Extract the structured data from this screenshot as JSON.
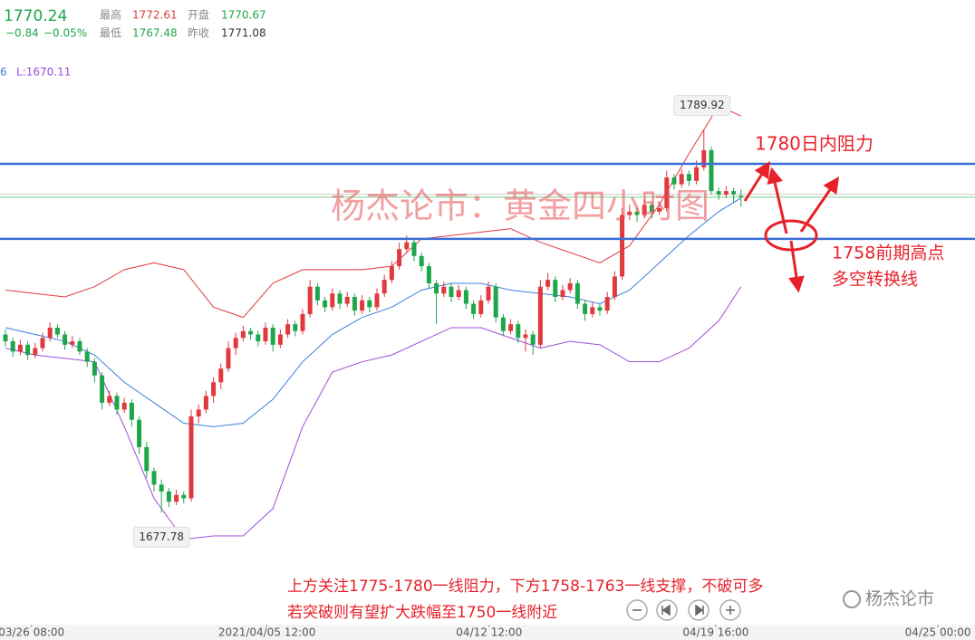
{
  "header": {
    "change": "−0.84",
    "change_pct": "−0.05%",
    "high_label": "最高",
    "open_label": "开盘",
    "low_label": "最低",
    "prev_close_label": "昨收",
    "indicator_cut": "6",
    "indicator_lower": "L:1670.11"
  },
  "chart_data": {
    "type": "candlestick",
    "up_color": "#e0393e",
    "down_color": "#1ea64a",
    "xlim": [
      -0.73,
      130.49
    ],
    "ylim": [
      1645,
      1828
    ],
    "xticks": [
      {
        "value": 3.5,
        "label": "03/26 08:00"
      },
      {
        "value": 35.2,
        "label": "2021/04/05 12:00"
      },
      {
        "value": 65.1,
        "label": "04/12 12:00"
      },
      {
        "value": 95.6,
        "label": "04/19 16:00"
      },
      {
        "value": 125.5,
        "label": "04/25 00:00"
      }
    ],
    "ohlc": [
      [
        1730,
        1731.5,
        1726.5,
        1728
      ],
      [
        1728,
        1729,
        1723.5,
        1725
      ],
      [
        1725,
        1728.5,
        1724,
        1727
      ],
      [
        1727,
        1728,
        1722.5,
        1724
      ],
      [
        1724,
        1727.5,
        1723,
        1726
      ],
      [
        1726,
        1730.5,
        1725,
        1729
      ],
      [
        1729,
        1733.5,
        1728,
        1732
      ],
      [
        1732,
        1733,
        1729,
        1730
      ],
      [
        1730,
        1731,
        1725.5,
        1727
      ],
      [
        1727,
        1729.5,
        1726,
        1728
      ],
      [
        1728,
        1729,
        1724,
        1725
      ],
      [
        1725,
        1726,
        1720.5,
        1722
      ],
      [
        1722,
        1723,
        1716,
        1718
      ],
      [
        1718,
        1719,
        1708,
        1710
      ],
      [
        1710,
        1713.5,
        1709,
        1712
      ],
      [
        1712,
        1713,
        1706.5,
        1708
      ],
      [
        1708,
        1711.5,
        1707,
        1710
      ],
      [
        1710,
        1711,
        1703,
        1705
      ],
      [
        1705,
        1706,
        1695,
        1697
      ],
      [
        1697,
        1698.5,
        1688,
        1690
      ],
      [
        1690,
        1691,
        1684,
        1686
      ],
      [
        1686,
        1687.5,
        1677.78,
        1684
      ],
      [
        1684,
        1685,
        1679.5,
        1681
      ],
      [
        1681,
        1684.5,
        1680,
        1683
      ],
      [
        1683,
        1684,
        1680.5,
        1682
      ],
      [
        1682,
        1708,
        1681,
        1706
      ],
      [
        1706,
        1709.5,
        1704,
        1708
      ],
      [
        1708,
        1713.5,
        1707,
        1712
      ],
      [
        1712,
        1717.5,
        1710,
        1716
      ],
      [
        1716,
        1721.5,
        1714,
        1720
      ],
      [
        1720,
        1728,
        1719,
        1726
      ],
      [
        1726,
        1730.5,
        1724,
        1729
      ],
      [
        1729,
        1732.5,
        1728,
        1731
      ],
      [
        1731,
        1732,
        1728.5,
        1730
      ],
      [
        1730,
        1731,
        1726.5,
        1728
      ],
      [
        1728,
        1733.5,
        1727,
        1732
      ],
      [
        1732,
        1733,
        1725,
        1727
      ],
      [
        1727,
        1731.5,
        1726,
        1730
      ],
      [
        1730,
        1734.5,
        1729,
        1733
      ],
      [
        1733,
        1734,
        1729.5,
        1731
      ],
      [
        1731,
        1737.5,
        1730,
        1736
      ],
      [
        1736,
        1746,
        1735,
        1744
      ],
      [
        1744,
        1745,
        1738.5,
        1740
      ],
      [
        1740,
        1741,
        1736.5,
        1738
      ],
      [
        1738,
        1743.5,
        1737,
        1742
      ],
      [
        1742,
        1743,
        1737.5,
        1739
      ],
      [
        1739,
        1742.5,
        1738,
        1741
      ],
      [
        1741,
        1742,
        1735.5,
        1737
      ],
      [
        1737,
        1741.5,
        1736,
        1740
      ],
      [
        1740,
        1741,
        1736.5,
        1738
      ],
      [
        1738,
        1743.5,
        1737,
        1742
      ],
      [
        1742,
        1747.5,
        1741,
        1746
      ],
      [
        1746,
        1751.5,
        1745,
        1750
      ],
      [
        1750,
        1757,
        1749,
        1755
      ],
      [
        1755,
        1759,
        1754,
        1757
      ],
      [
        1757,
        1758,
        1751.5,
        1753
      ],
      [
        1753,
        1754,
        1748.5,
        1750
      ],
      [
        1750,
        1751,
        1743.5,
        1745
      ],
      [
        1745,
        1746,
        1733,
        1742
      ],
      [
        1742,
        1745.5,
        1741,
        1744
      ],
      [
        1744,
        1745,
        1739.5,
        1741
      ],
      [
        1741,
        1744.5,
        1740,
        1743
      ],
      [
        1743,
        1744,
        1737.5,
        1739
      ],
      [
        1739,
        1740,
        1734.5,
        1736
      ],
      [
        1736,
        1741.5,
        1735,
        1740
      ],
      [
        1740,
        1745.5,
        1739,
        1744
      ],
      [
        1744,
        1745,
        1733.5,
        1735
      ],
      [
        1735,
        1736,
        1729.5,
        1731
      ],
      [
        1731,
        1734.5,
        1730,
        1733
      ],
      [
        1733,
        1734,
        1727.5,
        1729
      ],
      [
        1729,
        1731.5,
        1725,
        1730
      ],
      [
        1730,
        1731,
        1724,
        1727
      ],
      [
        1727,
        1746,
        1726,
        1744
      ],
      [
        1744,
        1748,
        1743,
        1746
      ],
      [
        1746,
        1747,
        1739.5,
        1741
      ],
      [
        1741,
        1744.5,
        1740,
        1743
      ],
      [
        1743,
        1746.5,
        1742,
        1745
      ],
      [
        1745,
        1746,
        1737.5,
        1739
      ],
      [
        1739,
        1740,
        1734,
        1736
      ],
      [
        1736,
        1739.5,
        1735,
        1738
      ],
      [
        1738,
        1739,
        1735.5,
        1737
      ],
      [
        1737,
        1742.5,
        1736,
        1741
      ],
      [
        1741,
        1748.5,
        1740,
        1747
      ],
      [
        1747,
        1767,
        1746,
        1765
      ],
      [
        1765,
        1768,
        1763.5,
        1766
      ],
      [
        1766,
        1767,
        1763,
        1765
      ],
      [
        1765,
        1769.5,
        1764,
        1768
      ],
      [
        1768,
        1769,
        1764,
        1766
      ],
      [
        1766,
        1768.5,
        1765,
        1767
      ],
      [
        1767,
        1778,
        1766,
        1776
      ],
      [
        1776,
        1777,
        1772.5,
        1774
      ],
      [
        1774,
        1778.5,
        1773,
        1777
      ],
      [
        1777,
        1778,
        1773.5,
        1775
      ],
      [
        1775,
        1781,
        1774,
        1779
      ],
      [
        1779,
        1789.92,
        1778,
        1784
      ],
      [
        1784,
        1785,
        1771,
        1772
      ],
      [
        1772,
        1773,
        1769.5,
        1771
      ],
      [
        1771,
        1773.5,
        1770,
        1772
      ],
      [
        1772,
        1773,
        1768.5,
        1771.08
      ],
      [
        1770.67,
        1772.61,
        1767.48,
        1770.24
      ]
    ],
    "bands": [
      {
        "color": "#e0393e",
        "x": [
          0,
          4,
          8,
          12,
          16,
          20,
          24,
          28,
          32,
          36,
          40,
          44,
          48,
          52,
          56,
          60,
          64,
          68,
          72,
          76,
          80,
          84,
          88,
          92,
          96,
          99
        ],
        "values": [
          1743,
          1742,
          1741,
          1744,
          1749,
          1751,
          1749,
          1738,
          1735,
          1745,
          1749,
          1749,
          1749,
          1750,
          1758,
          1759,
          1760,
          1761,
          1757,
          1754,
          1751,
          1756,
          1768,
          1783,
          1797,
          1794
        ]
      },
      {
        "color": "#3b7ddd",
        "x": [
          0,
          4,
          8,
          12,
          16,
          20,
          24,
          28,
          32,
          36,
          40,
          44,
          48,
          52,
          56,
          60,
          64,
          68,
          72,
          76,
          80,
          84,
          88,
          92,
          96,
          99
        ],
        "values": [
          1732,
          1730,
          1728,
          1724,
          1716,
          1710,
          1704,
          1703,
          1704,
          1711,
          1722,
          1730,
          1735,
          1738,
          1743,
          1745,
          1745,
          1743,
          1742,
          1741,
          1739,
          1743,
          1751,
          1759,
          1766,
          1770
        ]
      },
      {
        "color": "#9b4de0",
        "x": [
          0,
          4,
          8,
          12,
          16,
          20,
          24,
          28,
          32,
          36,
          40,
          44,
          48,
          52,
          56,
          60,
          64,
          68,
          72,
          76,
          80,
          84,
          88,
          92,
          96,
          99
        ],
        "values": [
          1726,
          1724,
          1723,
          1722,
          1703,
          1682,
          1670,
          1671,
          1671,
          1679,
          1703,
          1719,
          1722,
          1724,
          1728,
          1732,
          1732,
          1729,
          1726,
          1728,
          1727,
          1722,
          1722,
          1726,
          1734,
          1744
        ]
      }
    ],
    "hlines": [
      {
        "value": 1780,
        "color": "#3a6fd8"
      },
      {
        "value": 1758,
        "color": "#3a6fd8"
      }
    ]
  },
  "annotations": {
    "resistance": "1780日内阻力",
    "pivot_1": "1758前期高点",
    "pivot_2": "多空转换线",
    "watermark": "杨杰论市：黄金四小时图",
    "note_1": "上方关注1775-1780一线阻力，下方1758-1763一线支撑，不破可多",
    "note_2": "若突破则有望扩大跌幅至1750一线附近",
    "logo": "杨杰论市"
  }
}
